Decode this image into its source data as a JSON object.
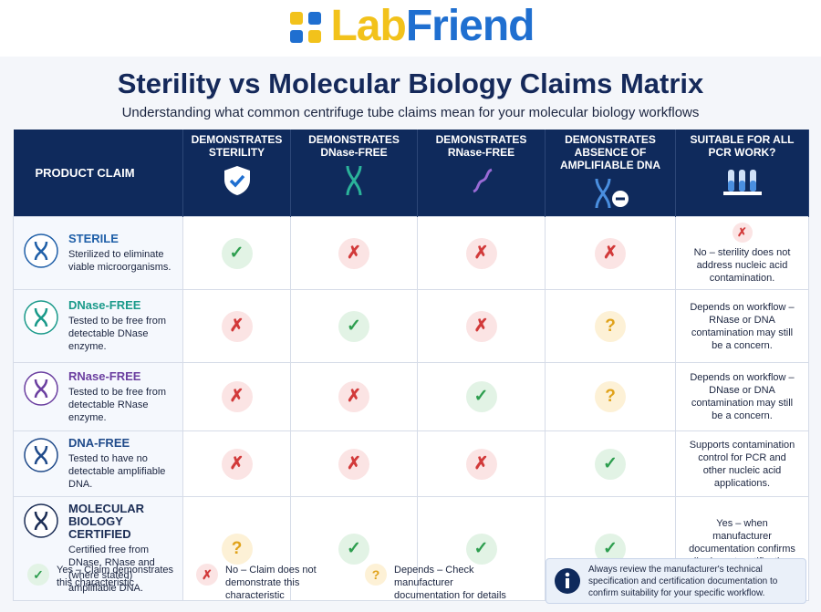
{
  "logo": {
    "part1": "Lab",
    "part2": "Friend"
  },
  "title": "Sterility vs Molecular Biology Claims Matrix",
  "subtitle": "Understanding what common centrifuge tube claims mean for your molecular biology workflows",
  "table": {
    "headers": [
      "PRODUCT CLAIM",
      "DEMONSTRATES STERILITY",
      "DEMONSTRATES DNase-FREE",
      "DEMONSTRATES RNase-FREE",
      "DEMONSTRATES ABSENCE OF AMPLIFIABLE DNA",
      "SUITABLE FOR ALL PCR WORK?"
    ],
    "rows": [
      {
        "name": "STERILE",
        "color": "#1f5fa8",
        "description": "Sterilized to eliminate viable microorganisms.",
        "cells": [
          "✓",
          "✗",
          "✗",
          "✗"
        ],
        "suitability_mark": "✗",
        "suitability": "No – sterility does not address nucleic acid contamination."
      },
      {
        "name": "DNase-FREE",
        "color": "#1a9a8a",
        "description": "Tested to be free from detectable DNase enzyme.",
        "cells": [
          "✗",
          "✓",
          "✗",
          "?"
        ],
        "suitability": "Depends on workflow – RNase or DNA contamination may still be a concern."
      },
      {
        "name": "RNase-FREE",
        "color": "#6b3fa0",
        "description": "Tested to be free from detectable RNase enzyme.",
        "cells": [
          "✗",
          "✗",
          "✓",
          "?"
        ],
        "suitability": "Depends on workflow – DNase or DNA contamination may still be a concern."
      },
      {
        "name": "DNA-FREE",
        "color": "#1f4a8a",
        "description": "Tested to have no detectable amplifiable DNA.",
        "cells": [
          "✗",
          "✗",
          "✗",
          "✓"
        ],
        "suitability": "Supports contamination control for PCR and other nucleic acid applications."
      },
      {
        "name": "MOLECULAR BIOLOGY CERTIFIED",
        "color": "#1b2d55",
        "description": "Certified free from DNase, RNase and (where stated) amplifiable DNA.",
        "cells": [
          "?",
          "✓",
          "✓",
          "✓"
        ],
        "suitability": "Yes – when manufacturer documentation confirms all relevant certifications for your application."
      }
    ]
  },
  "legend": [
    {
      "symbol": "✓",
      "color": "#2e9e4f",
      "background": "#e2f3e5",
      "text": "Yes – Claim demonstrates this characteristic"
    },
    {
      "symbol": "✗",
      "color": "#d23a3a",
      "background": "#fbe4e4",
      "text": "No – Claim does not demonstrate this characteristic"
    },
    {
      "symbol": "?",
      "color": "#e0a21a",
      "background": "#fdf1d6",
      "text": "Depends – Check manufacturer documentation for details"
    }
  ],
  "info_note": "Always review the manufacturer's technical specification and certification documentation to confirm suitability for your specific workflow."
}
